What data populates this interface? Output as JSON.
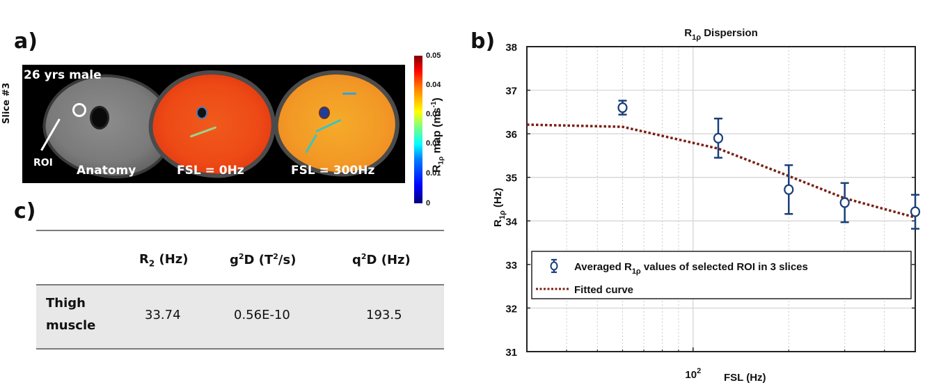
{
  "panel_a": {
    "label": "a)",
    "slice_label": "Slice #3",
    "subject": "26 yrs male",
    "roi_label": "ROI",
    "images": [
      {
        "caption": "Anatomy"
      },
      {
        "caption": "FSL = 0Hz"
      },
      {
        "caption": "FSL = 300Hz"
      }
    ],
    "colorbar": {
      "title_main": "R",
      "title_sub": "1ρ",
      "title_rest": " map (ms",
      "title_sup": "-1",
      "title_end": ")",
      "ticks": [
        "0.05",
        "0.04",
        "0.03",
        "0.02",
        "0.01",
        "0"
      ],
      "range": [
        0,
        0.05
      ],
      "colormap": "jet"
    }
  },
  "panel_c": {
    "label": "c)",
    "headers": [
      {
        "main": "R",
        "sub": "2",
        "rest": " (Hz)"
      },
      {
        "pre": "g",
        "sup": "2",
        "rest": "D (T",
        "sup2": "2",
        "end": "/s)"
      },
      {
        "pre": "q",
        "sup": "2",
        "rest": "D (Hz)"
      }
    ],
    "rows": [
      {
        "name_line1": "Thigh",
        "name_line2": "muscle",
        "values": [
          "33.74",
          "0.56E-10",
          "193.5"
        ]
      }
    ]
  },
  "panel_b": {
    "label": "b)"
  },
  "chart_data": {
    "type": "scatter",
    "title": "R1ρ Dispersion",
    "title_main": "R",
    "title_sub": "1ρ",
    "title_rest": " Dispersion",
    "xlabel": "FSL (Hz)",
    "ylabel_main": "R",
    "ylabel_sub": "1ρ",
    "ylabel_rest": " (Hz)",
    "xscale": "log",
    "xlim": [
      30,
      500
    ],
    "ylim": [
      31,
      38
    ],
    "xtick_label": {
      "base": "10",
      "exp": "2",
      "value": 100
    },
    "x_minor_ticks": [
      40,
      50,
      60,
      70,
      80,
      90,
      200,
      300,
      400,
      500
    ],
    "yticks": [
      31,
      32,
      33,
      34,
      35,
      36,
      37,
      38
    ],
    "grid": true,
    "legend_position": "lower-left",
    "series": [
      {
        "name": "Averaged R1ρ values of selected ROI in 3 slices",
        "legend_main": "Averaged R",
        "legend_sub": "1ρ",
        "legend_rest": " values of selected ROI in 3 slices",
        "type": "errorbar",
        "color": "#1a3f7a",
        "x": [
          60,
          120,
          200,
          300,
          500
        ],
        "y": [
          36.6,
          35.9,
          34.72,
          34.42,
          34.21
        ],
        "err": [
          0.16,
          0.45,
          0.56,
          0.45,
          0.39
        ]
      },
      {
        "name": "Fitted curve",
        "type": "line",
        "style": "dotted",
        "color": "#7a1f14",
        "x": [
          30,
          60,
          120,
          200,
          300,
          500
        ],
        "y": [
          36.21,
          36.16,
          35.66,
          35.03,
          34.52,
          34.08
        ]
      }
    ]
  }
}
